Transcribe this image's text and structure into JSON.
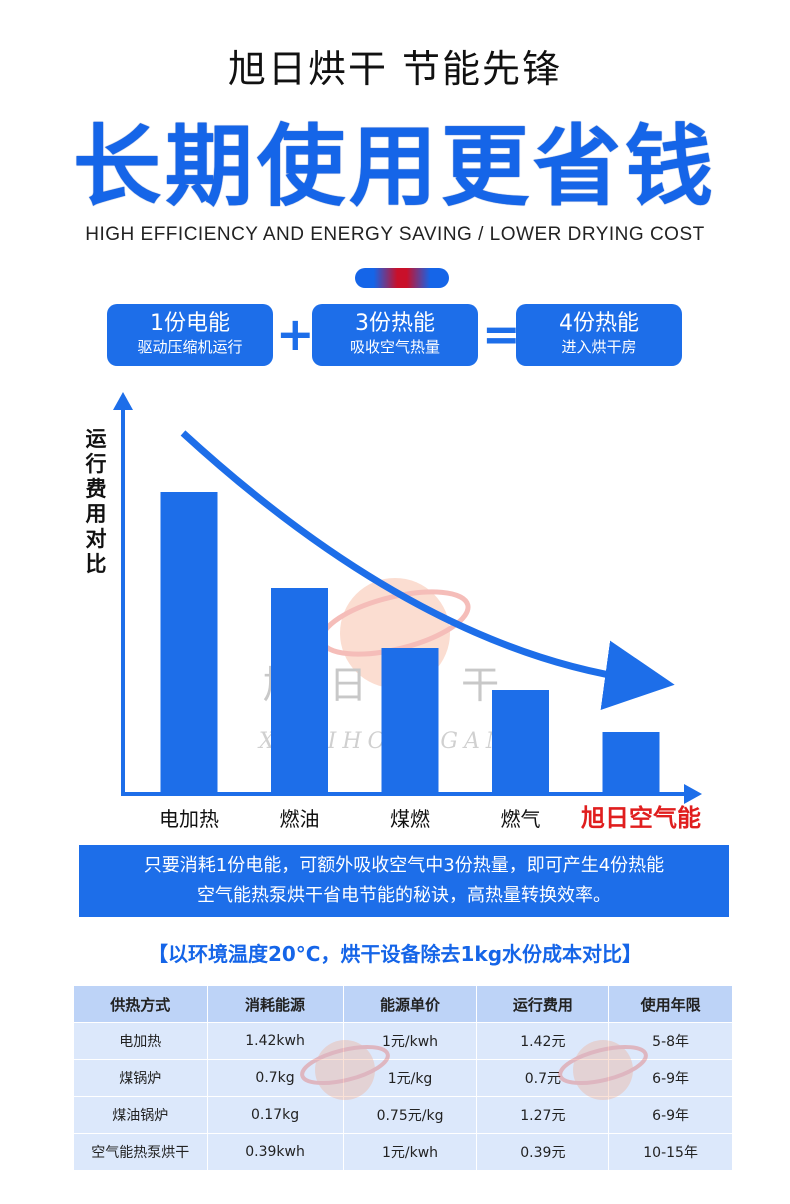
{
  "header": {
    "tagline": "旭日烘干 节能先锋",
    "headline": "长期使用更省钱",
    "subtitle_en": "HIGH EFFICIENCY AND ENERGY SAVING / LOWER DRYING COST"
  },
  "equation": {
    "box1": {
      "title": "1份电能",
      "sub": "驱动压缩机运行"
    },
    "plus": "+",
    "box2": {
      "title": "3份热能",
      "sub": "吸收空气热量"
    },
    "equals": "=",
    "box3": {
      "title": "4份热能",
      "sub": "进入烘干房"
    }
  },
  "chart_data": {
    "type": "bar",
    "ylabel": "运行费用对比",
    "categories": [
      "电加热",
      "燃油",
      "煤燃",
      "燃气",
      "旭日空气能"
    ],
    "values": [
      100,
      68,
      48,
      34,
      20
    ],
    "highlight_index": 4,
    "colors": {
      "bar": "#1d6ee9",
      "highlight_label": "#e01e1e",
      "axis": "#1d6ee9"
    }
  },
  "watermark": {
    "cn": "旭 日 烘 干",
    "en": "XURIHONGGAN"
  },
  "banner": {
    "line1": "只要消耗1份电能，可额外吸收空气中3份热量，即可产生4份热能",
    "line2": "空气能热泵烘干省电节能的秘诀，高热量转换效率。"
  },
  "table_note": "【以环境温度20°C，烘干设备除去1kg水份成本对比】",
  "table": {
    "headers": [
      "供热方式",
      "消耗能源",
      "能源单价",
      "运行费用",
      "使用年限"
    ],
    "rows": [
      [
        "电加热",
        "1.42kwh",
        "1元/kwh",
        "1.42元",
        "5-8年"
      ],
      [
        "煤锅炉",
        "0.7kg",
        "1元/kg",
        "0.7元",
        "6-9年"
      ],
      [
        "煤油锅炉",
        "0.17kg",
        "0.75元/kg",
        "1.27元",
        "6-9年"
      ],
      [
        "空气能热泵烘干",
        "0.39kwh",
        "1元/kwh",
        "0.39元",
        "10-15年"
      ]
    ]
  }
}
